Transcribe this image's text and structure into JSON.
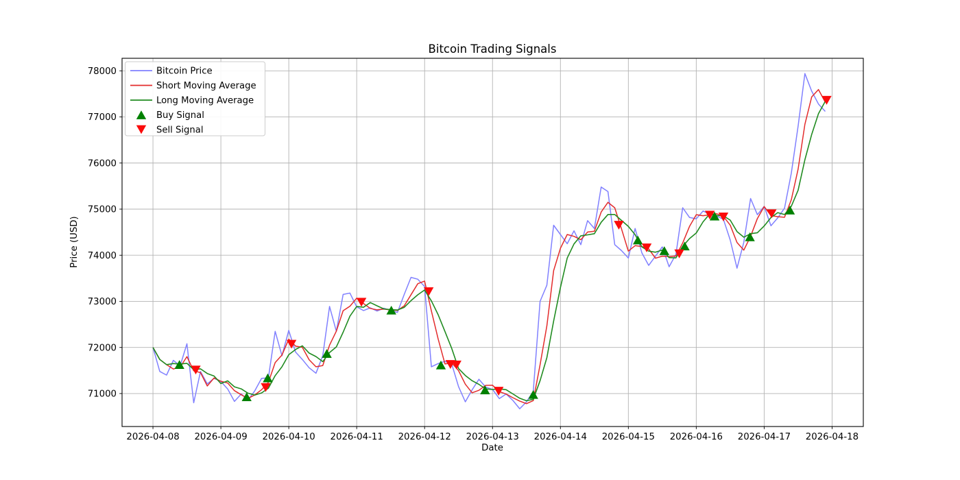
{
  "chart_data": {
    "type": "line",
    "title": "Bitcoin Trading Signals",
    "xlabel": "Date",
    "ylabel": "Price (USD)",
    "grid": true,
    "grid_color": "#b3b3b3",
    "legend_position": "upper left",
    "x_tick_labels": [
      "2026-04-08",
      "2026-04-09",
      "2026-04-10",
      "2026-04-11",
      "2026-04-12",
      "2026-04-13",
      "2026-04-14",
      "2026-04-15",
      "2026-04-16",
      "2026-04-17",
      "2026-04-18"
    ],
    "y_ticks": [
      71000,
      72000,
      73000,
      74000,
      75000,
      76000,
      77000,
      78000
    ],
    "ylim": [
      70285,
      78272
    ],
    "xlim_days": [
      -0.455,
      10.46
    ],
    "x_unit": "days since 2026-04-08 00:00",
    "sample_step_days": 0.1,
    "series": [
      {
        "name": "Bitcoin Price",
        "color": "#8080ff",
        "t_start": 0,
        "t_step": 0.1,
        "values": [
          72000,
          71480,
          71400,
          71720,
          71600,
          72080,
          70800,
          71480,
          71210,
          71330,
          71260,
          71100,
          70830,
          70990,
          70860,
          71060,
          71330,
          71340,
          72350,
          71820,
          72370,
          71900,
          71740,
          71560,
          71440,
          71820,
          72890,
          72350,
          73150,
          73180,
          72880,
          72800,
          72860,
          72790,
          72850,
          72800,
          72760,
          73150,
          73520,
          73480,
          73320,
          71580,
          71650,
          71700,
          71640,
          71150,
          70820,
          71080,
          71310,
          71140,
          71090,
          70890,
          70990,
          70850,
          70670,
          70820,
          71050,
          73000,
          73350,
          74650,
          74450,
          74250,
          74530,
          74230,
          74750,
          74580,
          75480,
          75380,
          74230,
          74100,
          73940,
          74580,
          74050,
          73780,
          73980,
          74180,
          73750,
          74020,
          75030,
          74820,
          74790,
          74960,
          74890,
          74850,
          74780,
          74330,
          73720,
          74280,
          75230,
          74880,
          75060,
          74640,
          74810,
          75020,
          75780,
          76800,
          77940,
          77560,
          77280,
          77120
        ]
      },
      {
        "name": "Short Moving Average",
        "color": "#e32b2b",
        "derived": "rolling_mean_of_price",
        "window": 3
      },
      {
        "name": "Long Moving Average",
        "color": "#208b20",
        "derived": "rolling_mean_of_price",
        "window": 5
      }
    ],
    "buy_signals": {
      "label": "Buy Signal",
      "marker": "triangle-up",
      "color": "#008000",
      "points": [
        {
          "t": 0.39,
          "price": 71630
        },
        {
          "t": 1.38,
          "price": 70930
        },
        {
          "t": 1.69,
          "price": 71340
        },
        {
          "t": 2.56,
          "price": 71870
        },
        {
          "t": 3.51,
          "price": 72810
        },
        {
          "t": 4.24,
          "price": 71620
        },
        {
          "t": 4.89,
          "price": 71080
        },
        {
          "t": 5.6,
          "price": 70980
        },
        {
          "t": 7.14,
          "price": 74330
        },
        {
          "t": 7.53,
          "price": 74100
        },
        {
          "t": 7.83,
          "price": 74200
        },
        {
          "t": 8.27,
          "price": 74850
        },
        {
          "t": 8.79,
          "price": 74400
        },
        {
          "t": 9.38,
          "price": 74980
        }
      ]
    },
    "sell_signals": {
      "label": "Sell Signal",
      "marker": "triangle-down",
      "color": "#fb0b0b",
      "points": [
        {
          "t": 0.63,
          "price": 71510
        },
        {
          "t": 1.66,
          "price": 71130
        },
        {
          "t": 2.04,
          "price": 72070
        },
        {
          "t": 3.07,
          "price": 72980
        },
        {
          "t": 4.06,
          "price": 73210
        },
        {
          "t": 4.38,
          "price": 71630
        },
        {
          "t": 4.47,
          "price": 71620
        },
        {
          "t": 5.09,
          "price": 71050
        },
        {
          "t": 6.86,
          "price": 74650
        },
        {
          "t": 7.27,
          "price": 74160
        },
        {
          "t": 7.75,
          "price": 74030
        },
        {
          "t": 8.2,
          "price": 74870
        },
        {
          "t": 8.4,
          "price": 74830
        },
        {
          "t": 9.11,
          "price": 74900
        },
        {
          "t": 9.92,
          "price": 77360
        }
      ]
    },
    "legend": [
      {
        "label": "Bitcoin Price",
        "swatch": "line",
        "color": "#8080ff"
      },
      {
        "label": "Short Moving Average",
        "swatch": "line",
        "color": "#e32b2b"
      },
      {
        "label": "Long Moving Average",
        "swatch": "line",
        "color": "#208b20"
      },
      {
        "label": "Buy Signal",
        "swatch": "triangle-up",
        "color": "#008000"
      },
      {
        "label": "Sell Signal",
        "swatch": "triangle-down",
        "color": "#fb0b0b"
      }
    ]
  }
}
